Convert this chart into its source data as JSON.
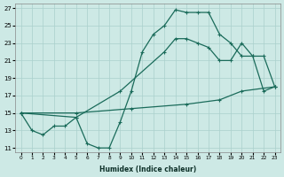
{
  "background_color": "#cde9e5",
  "grid_color": "#aad0cc",
  "line_color": "#1a6b5a",
  "xlabel": "Humidex (Indice chaleur)",
  "xlim": [
    -0.5,
    23.5
  ],
  "ylim": [
    10.5,
    27.5
  ],
  "xticks": [
    0,
    1,
    2,
    3,
    4,
    5,
    6,
    7,
    8,
    9,
    10,
    11,
    12,
    13,
    14,
    15,
    16,
    17,
    18,
    19,
    20,
    21,
    22,
    23
  ],
  "yticks": [
    11,
    13,
    15,
    17,
    19,
    21,
    23,
    25,
    27
  ],
  "curve_jagged_x": [
    0,
    1,
    2,
    3,
    4,
    5,
    6,
    7,
    8,
    9,
    10,
    11,
    12,
    13,
    14,
    15,
    16,
    17,
    18,
    19,
    20,
    21,
    22,
    23
  ],
  "curve_jagged_y": [
    15,
    13,
    12.5,
    13.5,
    13.5,
    14.5,
    11.5,
    11,
    11,
    14,
    17.5,
    22,
    24,
    25,
    26.8,
    26.5,
    26.5,
    26.5,
    24,
    23,
    21.5,
    21.5,
    17.5,
    18
  ],
  "curve_upper_x": [
    0,
    5,
    9,
    13,
    14,
    15,
    16,
    17,
    18,
    19,
    20,
    21,
    22,
    23
  ],
  "curve_upper_y": [
    15,
    14.5,
    17.5,
    22,
    23.5,
    23.5,
    23,
    22.5,
    21,
    21,
    23,
    21.5,
    21.5,
    18
  ],
  "curve_lower_x": [
    0,
    5,
    10,
    15,
    18,
    20,
    23
  ],
  "curve_lower_y": [
    15,
    15,
    15.5,
    16,
    16.5,
    17.5,
    18
  ]
}
